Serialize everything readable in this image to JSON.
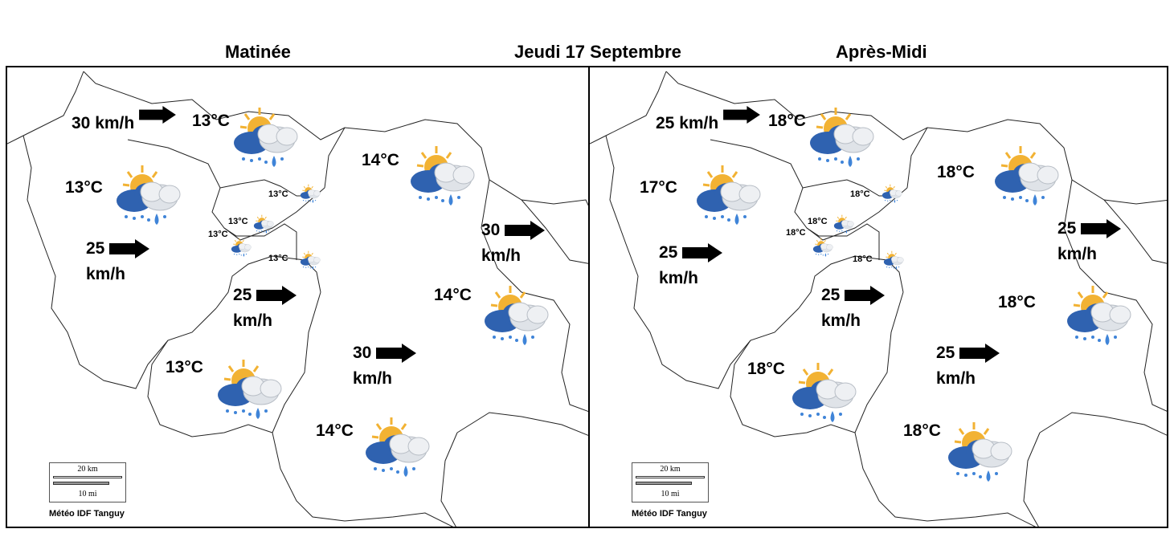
{
  "header": {
    "morning_title": "Matinée",
    "date_title": "Jeudi 17 Septembre",
    "afternoon_title": "Après-Midi"
  },
  "icons": {
    "weather": "sun-cloud-rain-icon",
    "wind": "arrow-right-icon"
  },
  "colors": {
    "sun": "#f2b233",
    "cloud_dark": "#2f62b0",
    "rain": "#3f84d8"
  },
  "morning": {
    "temps": [
      "13°C",
      "13°C",
      "14°C",
      "13°C",
      "13°C",
      "13°C",
      "13°C",
      "14°C",
      "13°C",
      "14°C"
    ],
    "winds": [
      {
        "speed": "30 km/h"
      },
      {
        "speed": "25",
        "unit": "km/h"
      },
      {
        "speed": "30",
        "unit": "km/h"
      },
      {
        "speed": "25",
        "unit": "km/h"
      },
      {
        "speed": "30",
        "unit": "km/h"
      }
    ],
    "scale_km": "20 km",
    "scale_mi": "10 mi",
    "credit": "Météo IDF Tanguy"
  },
  "afternoon": {
    "temps": [
      "18°C",
      "17°C",
      "18°C",
      "18°C",
      "18°C",
      "18°C",
      "18°C",
      "18°C",
      "18°C",
      "18°C"
    ],
    "winds": [
      {
        "speed": "25 km/h"
      },
      {
        "speed": "25",
        "unit": "km/h"
      },
      {
        "speed": "25",
        "unit": "km/h"
      },
      {
        "speed": "25",
        "unit": "km/h"
      },
      {
        "speed": "25",
        "unit": "km/h"
      }
    ],
    "scale_km": "20 km",
    "scale_mi": "10 mi",
    "credit": "Météo IDF Tanguy"
  }
}
